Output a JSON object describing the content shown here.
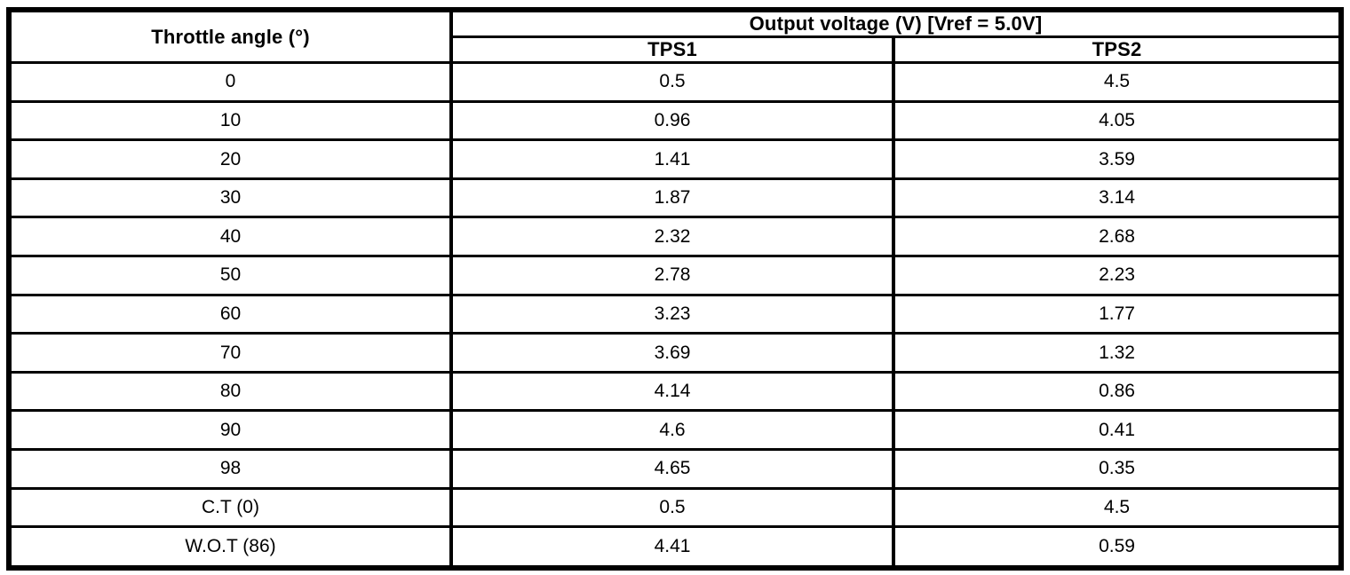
{
  "page": {
    "background_color": "#ffffff",
    "text_color": "#000000",
    "border_color": "#000000"
  },
  "table": {
    "header": {
      "throttle_label": "Throttle angle (°)",
      "output_group_label": "Output voltage (V) [Vref = 5.0V]",
      "tps1_label": "TPS1",
      "tps2_label": "TPS2"
    },
    "rows": [
      {
        "angle": "0",
        "tps1": "0.5",
        "tps2": "4.5"
      },
      {
        "angle": "10",
        "tps1": "0.96",
        "tps2": "4.05"
      },
      {
        "angle": "20",
        "tps1": "1.41",
        "tps2": "3.59"
      },
      {
        "angle": "30",
        "tps1": "1.87",
        "tps2": "3.14"
      },
      {
        "angle": "40",
        "tps1": "2.32",
        "tps2": "2.68"
      },
      {
        "angle": "50",
        "tps1": "2.78",
        "tps2": "2.23"
      },
      {
        "angle": "60",
        "tps1": "3.23",
        "tps2": "1.77"
      },
      {
        "angle": "70",
        "tps1": "3.69",
        "tps2": "1.32"
      },
      {
        "angle": "80",
        "tps1": "4.14",
        "tps2": "0.86"
      },
      {
        "angle": "90",
        "tps1": "4.6",
        "tps2": "0.41"
      },
      {
        "angle": "98",
        "tps1": "4.65",
        "tps2": "0.35"
      },
      {
        "angle": "C.T (0)",
        "tps1": "0.5",
        "tps2": "4.5"
      },
      {
        "angle": "W.O.T (86)",
        "tps1": "4.41",
        "tps2": "0.59"
      }
    ]
  },
  "chart_data": {
    "type": "table",
    "title": "Output voltage (V) [Vref = 5.0V]",
    "columns": [
      "Throttle angle (°)",
      "TPS1",
      "TPS2"
    ],
    "categories": [
      "0",
      "10",
      "20",
      "30",
      "40",
      "50",
      "60",
      "70",
      "80",
      "90",
      "98",
      "C.T (0)",
      "W.O.T (86)"
    ],
    "series": [
      {
        "name": "TPS1",
        "values": [
          0.5,
          0.96,
          1.41,
          1.87,
          2.32,
          2.78,
          3.23,
          3.69,
          4.14,
          4.6,
          4.65,
          0.5,
          4.41
        ]
      },
      {
        "name": "TPS2",
        "values": [
          4.5,
          4.05,
          3.59,
          3.14,
          2.68,
          2.23,
          1.77,
          1.32,
          0.86,
          0.41,
          0.35,
          4.5,
          0.59
        ]
      }
    ]
  }
}
